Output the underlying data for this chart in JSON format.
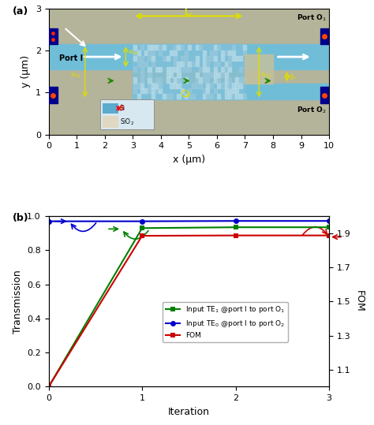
{
  "panel_b": {
    "iterations": [
      0,
      1,
      2,
      3
    ],
    "green_transmission": [
      0.0,
      0.93,
      0.935,
      0.935
    ],
    "blue_transmission": [
      0.97,
      0.97,
      0.972,
      0.972
    ],
    "red_fom_transmission": [
      0.0,
      0.885,
      0.887,
      0.887
    ],
    "ylim_left": [
      0.0,
      1.0
    ],
    "ylim_right": [
      1.0,
      2.0
    ],
    "yticks_left": [
      0.0,
      0.2,
      0.4,
      0.6,
      0.8,
      1.0
    ],
    "yticks_right": [
      1.1,
      1.3,
      1.5,
      1.7,
      1.9
    ],
    "xlim": [
      0,
      3
    ],
    "xticks": [
      0,
      1,
      2,
      3
    ],
    "xlabel": "Iteration",
    "ylabel_left": "Transmission",
    "ylabel_right": "FOM",
    "green_color": "#008000",
    "blue_color": "#0000CC",
    "red_color": "#CC0000",
    "legend_labels": [
      "Input TE$_1$ @port I to port O$_1$",
      "Input TE$_0$ @port I to port O$_2$",
      "FOM"
    ]
  },
  "panel_a": {
    "bg_color": "#B4B49A",
    "waveguide_color": "#70BDD8",
    "design_color": "#88C8DC",
    "xlabel": "x (μm)",
    "ylabel": "y (μm)",
    "xlim": [
      0,
      10
    ],
    "ylim": [
      0,
      3
    ]
  }
}
